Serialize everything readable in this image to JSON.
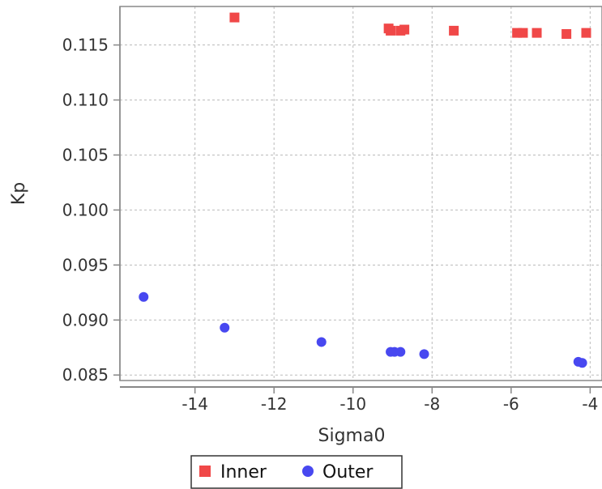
{
  "chart_data": {
    "type": "scatter",
    "title": "",
    "xlabel": "Sigma0",
    "ylabel": "Kp",
    "xlim": [
      -15.9,
      -3.7
    ],
    "ylim": [
      0.0845,
      0.1185
    ],
    "xticks": [
      -14,
      -12,
      -10,
      -8,
      -6,
      -4
    ],
    "xtick_labels": [
      "-14",
      "-12",
      "-10",
      "-8",
      "-6",
      "-4"
    ],
    "yticks": [
      0.085,
      0.09,
      0.095,
      0.1,
      0.105,
      0.11,
      0.115
    ],
    "ytick_labels": [
      "0.085",
      "0.090",
      "0.095",
      "0.100",
      "0.105",
      "0.110",
      "0.115"
    ],
    "grid": true,
    "legend_position": "bottom",
    "series": [
      {
        "name": "Inner",
        "marker": "square",
        "color": "#f04848",
        "points": [
          {
            "x": -13.0,
            "y": 0.1175
          },
          {
            "x": -9.1,
            "y": 0.1165
          },
          {
            "x": -9.05,
            "y": 0.1163
          },
          {
            "x": -8.8,
            "y": 0.1163
          },
          {
            "x": -8.7,
            "y": 0.1164
          },
          {
            "x": -7.45,
            "y": 0.1163
          },
          {
            "x": -5.85,
            "y": 0.1161
          },
          {
            "x": -5.7,
            "y": 0.1161
          },
          {
            "x": -5.35,
            "y": 0.1161
          },
          {
            "x": -4.6,
            "y": 0.116
          },
          {
            "x": -4.1,
            "y": 0.1161
          }
        ]
      },
      {
        "name": "Outer",
        "marker": "circle",
        "color": "#4848f0",
        "points": [
          {
            "x": -15.3,
            "y": 0.0921
          },
          {
            "x": -13.25,
            "y": 0.0893
          },
          {
            "x": -10.8,
            "y": 0.088
          },
          {
            "x": -9.05,
            "y": 0.0871
          },
          {
            "x": -8.95,
            "y": 0.0871
          },
          {
            "x": -8.8,
            "y": 0.0871
          },
          {
            "x": -8.2,
            "y": 0.0869
          },
          {
            "x": -4.3,
            "y": 0.0862
          },
          {
            "x": -4.2,
            "y": 0.0861
          }
        ]
      }
    ]
  }
}
